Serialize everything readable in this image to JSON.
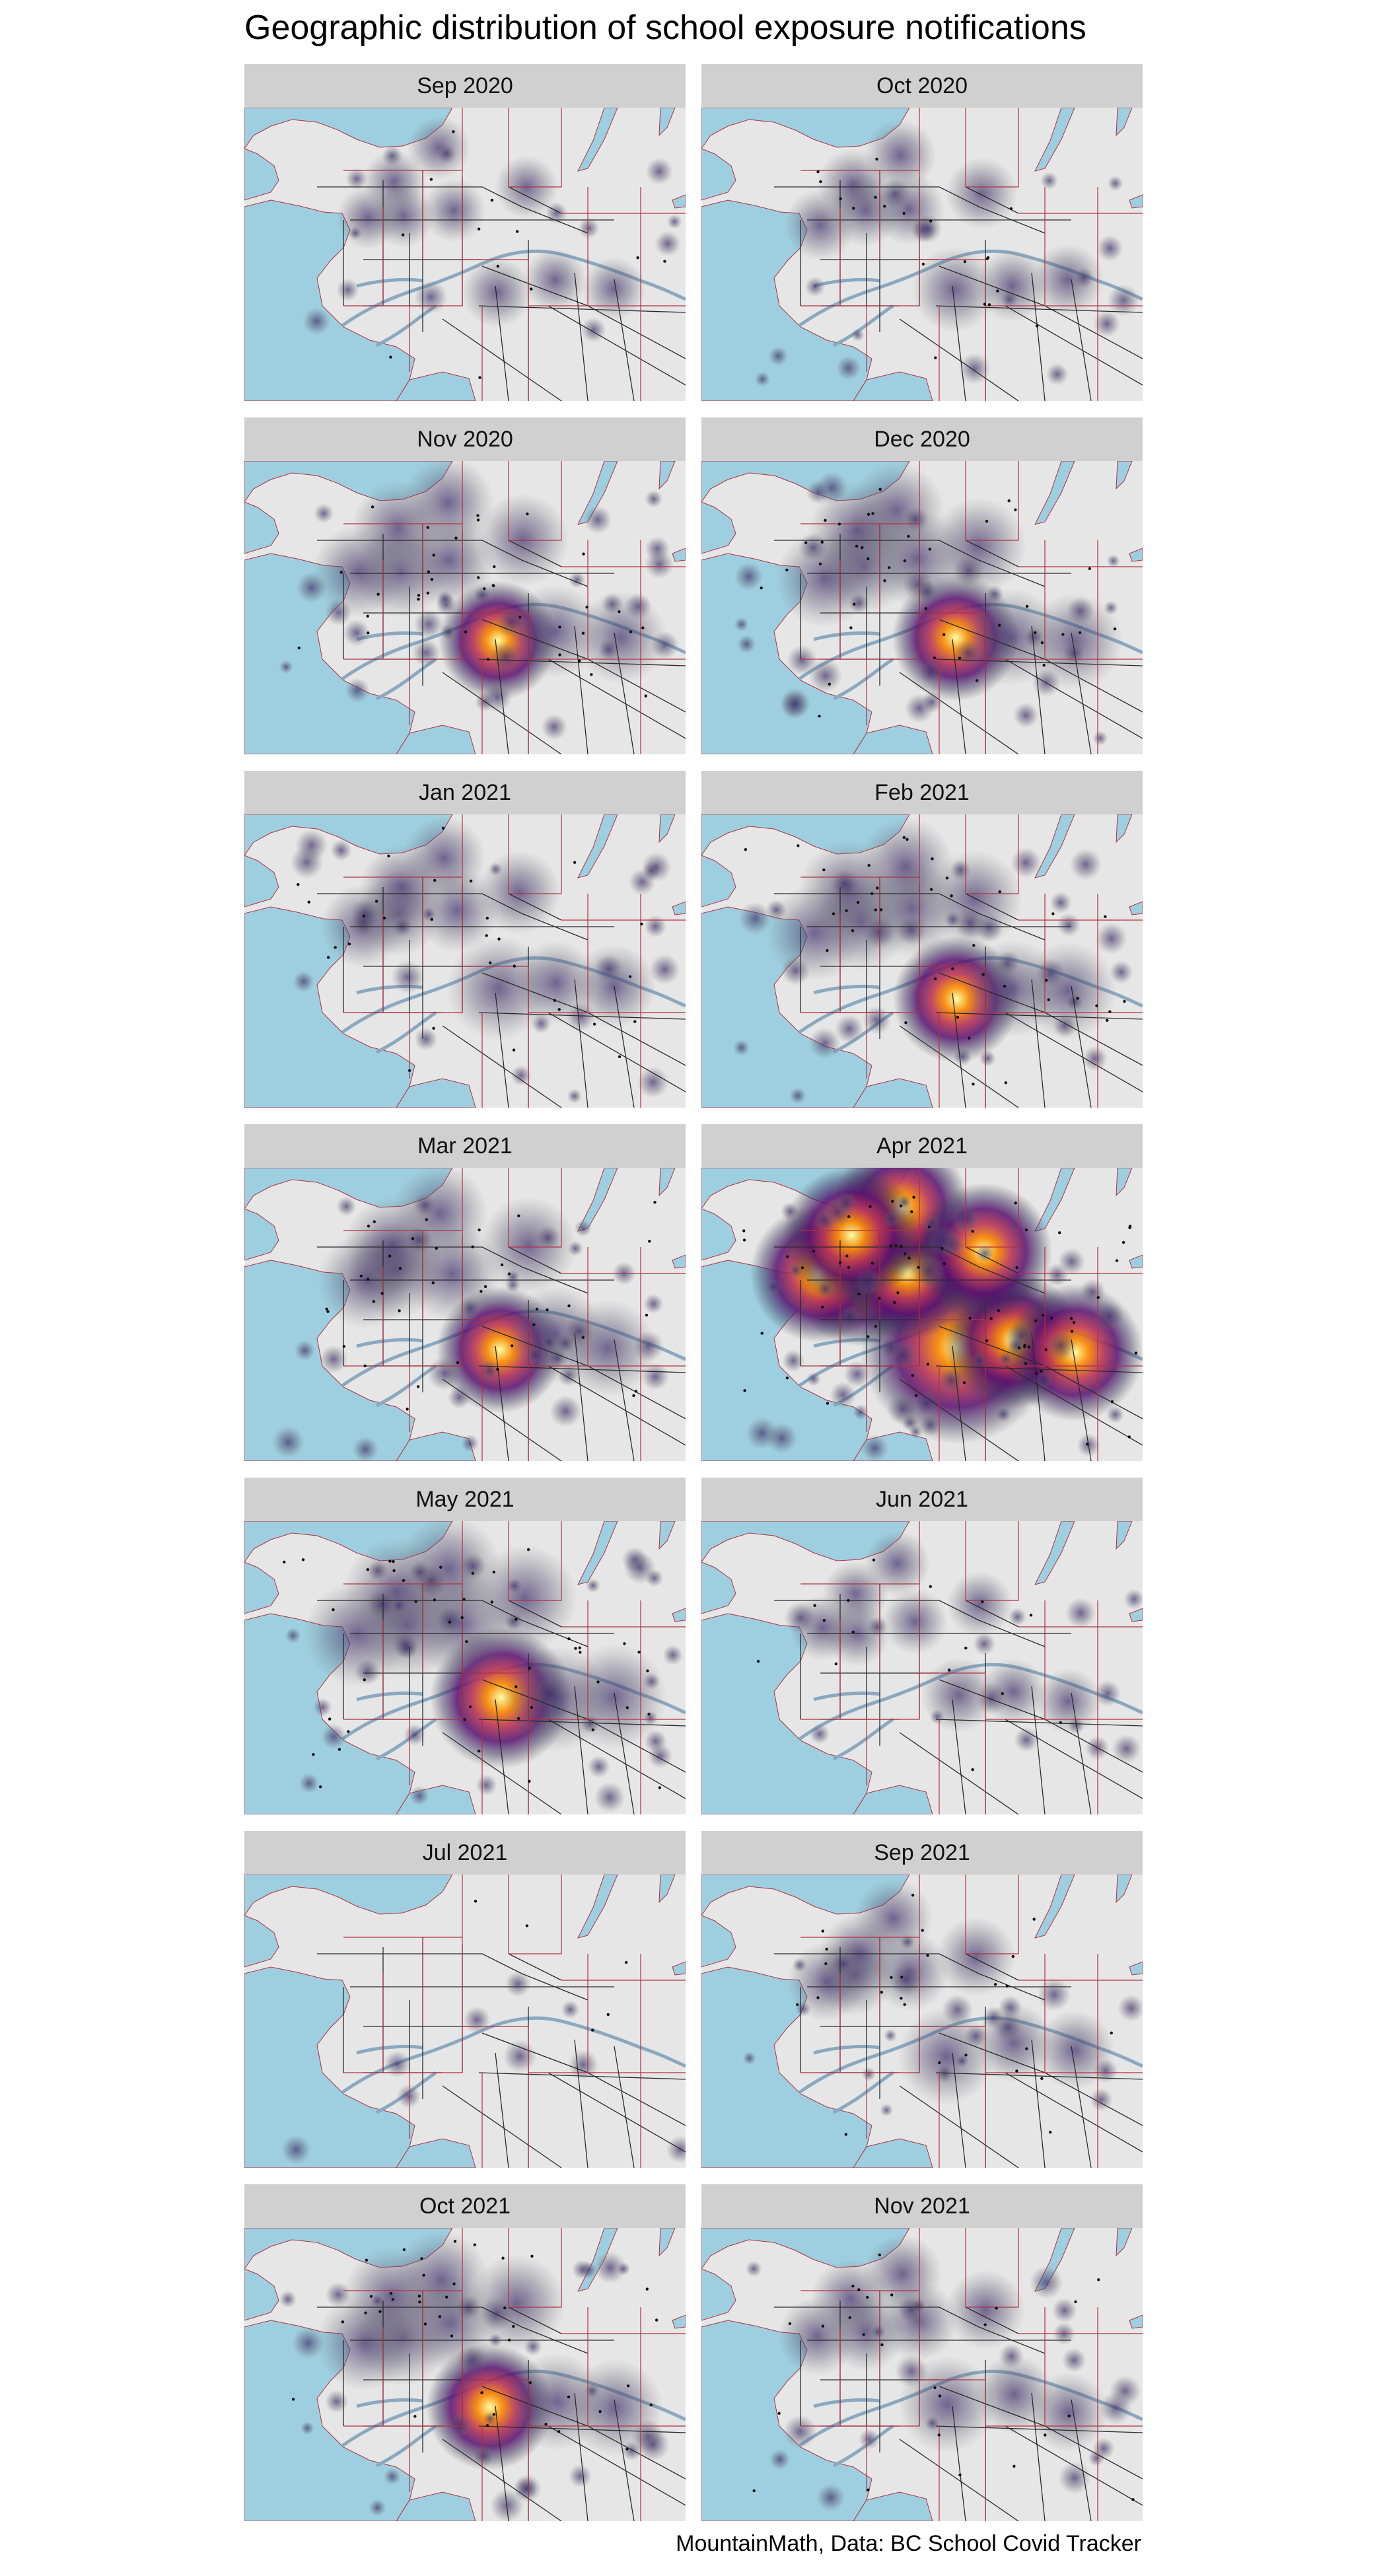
{
  "title": "Geographic distribution of school exposure notifications",
  "caption": "MountainMath, Data: BC School Covid Tracker",
  "colors": {
    "water": "#9ecfe0",
    "land": "#e6e6e6",
    "strip": "#d0d0d0",
    "boundary": "#b03040",
    "road": "#2a2a2a",
    "river": "#8aa8c0"
  },
  "density_palette": "inferno",
  "panels": [
    {
      "label": "Sep 2020",
      "level": 0.12
    },
    {
      "label": "Oct 2020",
      "level": 0.22
    },
    {
      "label": "Nov 2020",
      "level": 0.45
    },
    {
      "label": "Dec 2020",
      "level": 0.5
    },
    {
      "label": "Jan 2021",
      "level": 0.35
    },
    {
      "label": "Feb 2021",
      "level": 0.5
    },
    {
      "label": "Mar 2021",
      "level": 0.5
    },
    {
      "label": "Apr 2021",
      "level": 0.95
    },
    {
      "label": "May 2021",
      "level": 0.6
    },
    {
      "label": "Jun 2021",
      "level": 0.15
    },
    {
      "label": "Jul 2021",
      "level": 0.02
    },
    {
      "label": "Sep 2021",
      "level": 0.3
    },
    {
      "label": "Oct 2021",
      "level": 0.5
    },
    {
      "label": "Nov 2021",
      "level": 0.3
    }
  ]
}
